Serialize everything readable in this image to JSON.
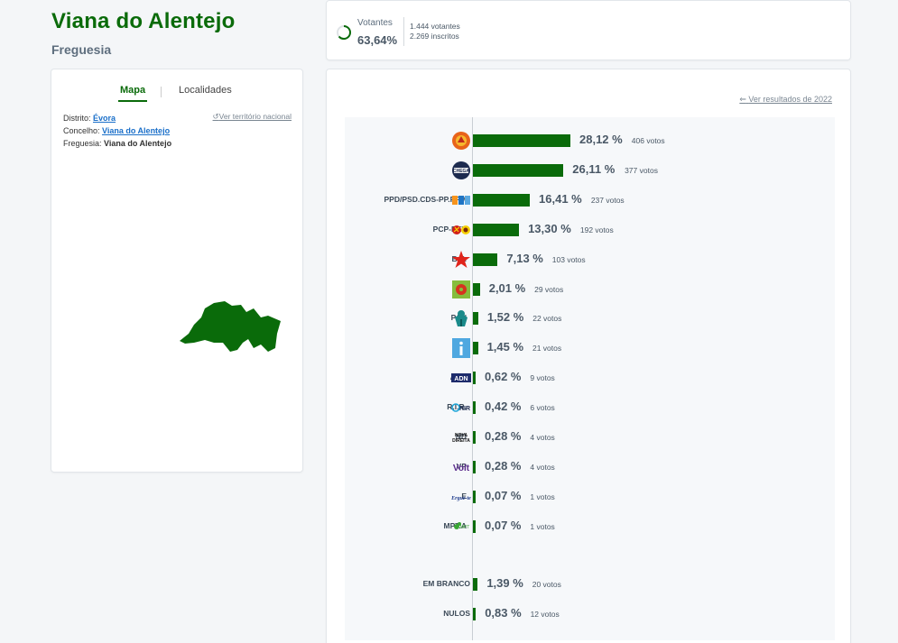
{
  "header": {
    "title": "Viana do Alentejo",
    "subtitle": "Freguesia"
  },
  "turnout": {
    "label": "Votantes",
    "percent": "63,64%",
    "voters": "1.444 votantes",
    "registered": "2.269 inscritos",
    "fraction": 0.6364,
    "accent": "#0a6b0a"
  },
  "map_panel": {
    "tabs": [
      {
        "label": "Mapa",
        "active": true
      },
      {
        "label": "Localidades",
        "active": false
      }
    ],
    "district_label": "Distrito:",
    "district_value": "Évora",
    "council_label": "Concelho:",
    "council_value": "Viana do Alentejo",
    "parish_label": "Freguesia:",
    "parish_value": "Viana do Alentejo",
    "national_link": "Ver território nacional",
    "map_color": "#0a6b0a"
  },
  "results": {
    "previous_link": "Ver resultados de 2022",
    "bar_color": "#0a6b0a",
    "max_percent": 28.12,
    "parties": [
      {
        "name": "PS",
        "percent": 28.12,
        "percent_text": "28,12 %",
        "votes": "406 votos",
        "icon": "ps-logo-icon"
      },
      {
        "name": "CH",
        "percent": 26.11,
        "percent_text": "26,11 %",
        "votes": "377 votos",
        "icon": "chega-logo-icon"
      },
      {
        "name": "PPD/PSD.CDS-PP.PPM",
        "percent": 16.41,
        "percent_text": "16,41 %",
        "votes": "237 votos",
        "icon": "ad-logo-icon"
      },
      {
        "name": "PCP-PEV",
        "percent": 13.3,
        "percent_text": "13,30 %",
        "votes": "192 votos",
        "icon": "cdu-logo-icon"
      },
      {
        "name": "B.E.",
        "percent": 7.13,
        "percent_text": "7,13 %",
        "votes": "103 votos",
        "icon": "be-star-icon"
      },
      {
        "name": "L",
        "percent": 2.01,
        "percent_text": "2,01 %",
        "votes": "29 votos",
        "icon": "livre-logo-icon"
      },
      {
        "name": "PAN",
        "percent": 1.52,
        "percent_text": "1,52 %",
        "votes": "22 votos",
        "icon": "pan-logo-icon"
      },
      {
        "name": "IL",
        "percent": 1.45,
        "percent_text": "1,45 %",
        "votes": "21 votos",
        "icon": "il-logo-icon"
      },
      {
        "name": "ADN",
        "percent": 0.62,
        "percent_text": "0,62 %",
        "votes": "9 votos",
        "icon": "adn-logo-icon"
      },
      {
        "name": "R.I.R.",
        "percent": 0.42,
        "percent_text": "0,42 %",
        "votes": "6 votos",
        "icon": "rir-logo-icon"
      },
      {
        "name": "ND",
        "percent": 0.28,
        "percent_text": "0,28 %",
        "votes": "4 votos",
        "icon": "nd-logo-icon"
      },
      {
        "name": "VP",
        "percent": 0.28,
        "percent_text": "0,28 %",
        "votes": "4 votos",
        "icon": "volt-logo-icon"
      },
      {
        "name": "E",
        "percent": 0.07,
        "percent_text": "0,07 %",
        "votes": "1 votos",
        "icon": "ergue-te-logo-icon"
      },
      {
        "name": "MPT.A",
        "percent": 0.07,
        "percent_text": "0,07 %",
        "votes": "1 votos",
        "icon": "mpt-logo-icon"
      }
    ],
    "others": [
      {
        "name": "EM BRANCO",
        "percent": 1.39,
        "percent_text": "1,39 %",
        "votes": "20 votos"
      },
      {
        "name": "NULOS",
        "percent": 0.83,
        "percent_text": "0,83 %",
        "votes": "12 votos"
      }
    ]
  }
}
